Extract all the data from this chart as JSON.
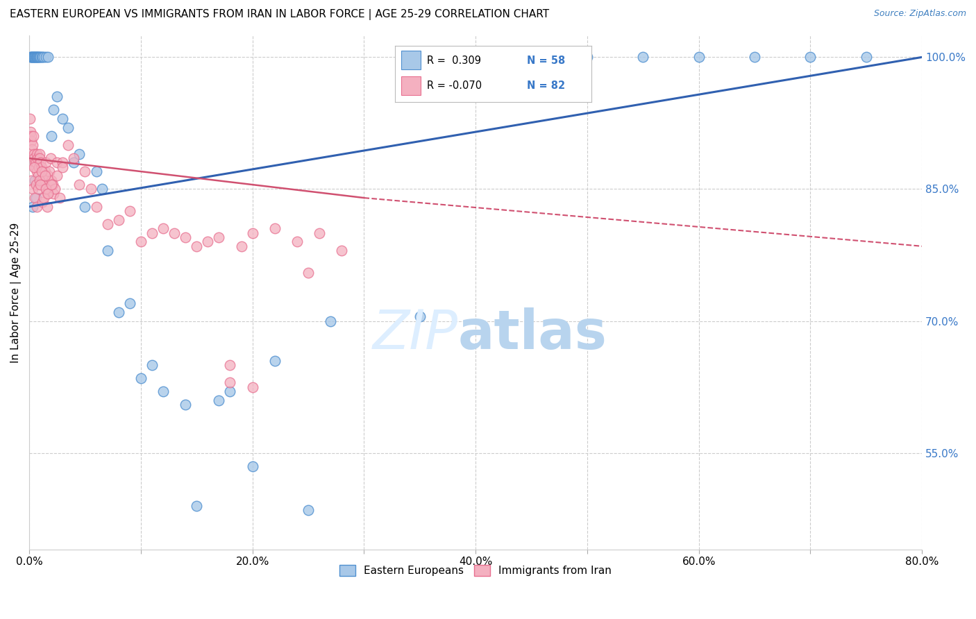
{
  "title": "EASTERN EUROPEAN VS IMMIGRANTS FROM IRAN IN LABOR FORCE | AGE 25-29 CORRELATION CHART",
  "source": "Source: ZipAtlas.com",
  "ylabel": "In Labor Force | Age 25-29",
  "xlim": [
    0.0,
    80.0
  ],
  "ylim": [
    44.0,
    102.5
  ],
  "xticks": [
    0.0,
    10.0,
    20.0,
    30.0,
    40.0,
    50.0,
    60.0,
    70.0,
    80.0
  ],
  "xticklabels": [
    "0.0%",
    "",
    "20.0%",
    "",
    "40.0%",
    "",
    "60.0%",
    "",
    "80.0%"
  ],
  "yticks": [
    55.0,
    70.0,
    85.0,
    100.0
  ],
  "yticklabels": [
    "55.0%",
    "70.0%",
    "85.0%",
    "100.0%"
  ],
  "blue_color": "#a8c8e8",
  "pink_color": "#f4b0c0",
  "blue_edge": "#5090d0",
  "pink_edge": "#e87090",
  "trend_blue": "#3060b0",
  "trend_pink": "#d05070",
  "legend_blue_r": "R =  0.309",
  "legend_blue_n": "N = 58",
  "legend_pink_r": "R = -0.070",
  "legend_pink_n": "N = 82",
  "blue_x": [
    0.1,
    0.15,
    0.2,
    0.25,
    0.3,
    0.35,
    0.4,
    0.45,
    0.5,
    0.55,
    0.6,
    0.65,
    0.7,
    0.75,
    0.8,
    0.85,
    0.9,
    1.0,
    1.1,
    1.2,
    1.3,
    1.5,
    1.7,
    2.0,
    2.2,
    2.5,
    3.0,
    3.5,
    4.0,
    4.5,
    5.0,
    6.0,
    6.5,
    7.0,
    8.0,
    9.0,
    10.0,
    11.0,
    12.0,
    14.0,
    15.0,
    17.0,
    18.0,
    20.0,
    22.0,
    25.0,
    27.0,
    35.0,
    40.0,
    50.0,
    55.0,
    60.0,
    65.0,
    70.0,
    75.0,
    0.3,
    0.5,
    0.6
  ],
  "blue_y": [
    100.0,
    100.0,
    100.0,
    100.0,
    100.0,
    100.0,
    100.0,
    100.0,
    100.0,
    100.0,
    100.0,
    100.0,
    100.0,
    100.0,
    100.0,
    100.0,
    100.0,
    100.0,
    100.0,
    100.0,
    100.0,
    100.0,
    100.0,
    91.0,
    94.0,
    95.5,
    93.0,
    92.0,
    88.0,
    89.0,
    83.0,
    87.0,
    85.0,
    78.0,
    71.0,
    72.0,
    63.5,
    65.0,
    62.0,
    60.5,
    49.0,
    61.0,
    62.0,
    53.5,
    65.5,
    48.5,
    70.0,
    70.5,
    100.0,
    100.0,
    100.0,
    100.0,
    100.0,
    100.0,
    100.0,
    83.0,
    86.0,
    84.0
  ],
  "pink_x": [
    0.05,
    0.1,
    0.15,
    0.2,
    0.25,
    0.3,
    0.35,
    0.4,
    0.45,
    0.5,
    0.55,
    0.6,
    0.65,
    0.7,
    0.75,
    0.8,
    0.85,
    0.9,
    0.95,
    1.0,
    1.1,
    1.2,
    1.3,
    1.4,
    1.5,
    1.6,
    1.7,
    1.8,
    1.9,
    2.0,
    2.1,
    2.2,
    2.3,
    2.5,
    2.7,
    3.0,
    3.5,
    4.0,
    4.5,
    5.0,
    5.5,
    6.0,
    7.0,
    8.0,
    9.0,
    10.0,
    11.0,
    12.0,
    13.0,
    14.0,
    15.0,
    16.0,
    17.0,
    18.0,
    19.0,
    20.0,
    22.0,
    24.0,
    26.0,
    28.0,
    0.2,
    0.3,
    0.4,
    0.5,
    0.6,
    0.7,
    0.8,
    0.9,
    1.0,
    1.1,
    1.2,
    1.3,
    1.4,
    1.5,
    1.6,
    1.7,
    2.0,
    2.5,
    3.0,
    18.0,
    20.0,
    25.0
  ],
  "pink_y": [
    93.0,
    91.5,
    90.5,
    91.0,
    89.5,
    90.0,
    91.0,
    89.0,
    88.5,
    88.0,
    87.5,
    88.0,
    89.0,
    87.0,
    88.5,
    86.5,
    87.5,
    89.0,
    88.5,
    88.0,
    87.5,
    86.0,
    85.5,
    87.0,
    88.0,
    84.5,
    86.5,
    87.0,
    88.5,
    86.0,
    85.5,
    84.5,
    85.0,
    88.0,
    84.0,
    88.0,
    90.0,
    88.5,
    85.5,
    87.0,
    85.0,
    83.0,
    81.0,
    81.5,
    82.5,
    79.0,
    80.0,
    80.5,
    80.0,
    79.5,
    78.5,
    79.0,
    79.5,
    65.0,
    78.5,
    80.0,
    80.5,
    79.0,
    80.0,
    78.0,
    86.0,
    85.0,
    87.5,
    84.0,
    85.5,
    83.0,
    85.0,
    86.0,
    85.5,
    87.0,
    83.5,
    84.0,
    86.5,
    85.0,
    83.0,
    84.5,
    85.5,
    86.5,
    87.5,
    63.0,
    62.5,
    75.5
  ],
  "figsize": [
    14.06,
    8.92
  ],
  "dpi": 100
}
